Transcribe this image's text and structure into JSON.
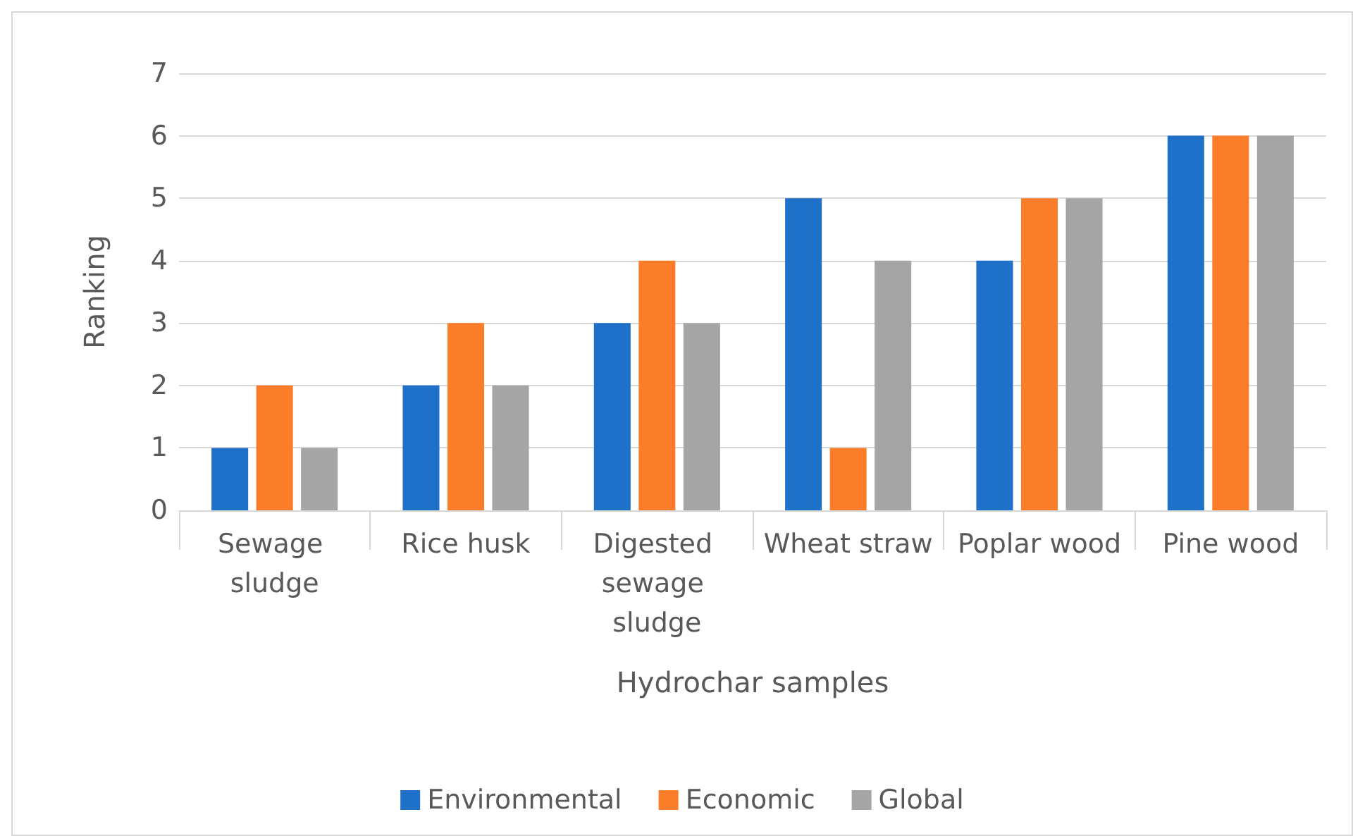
{
  "chart_data": {
    "type": "bar",
    "xlabel": "Hydrochar samples",
    "ylabel": "Ranking",
    "categories": [
      "Sewage sludge",
      "Rice husk",
      "Digested sewage sludge",
      "Wheat straw",
      "Poplar wood",
      "Pine wood"
    ],
    "series": [
      {
        "name": "Environmental",
        "color": "#1f70c8",
        "values": [
          1,
          2,
          3,
          5,
          4,
          6
        ]
      },
      {
        "name": "Economic",
        "color": "#fb7d29",
        "values": [
          2,
          3,
          4,
          1,
          5,
          6
        ]
      },
      {
        "name": "Global",
        "color": "#a5a5a5",
        "values": [
          1,
          2,
          3,
          4,
          5,
          6
        ]
      }
    ],
    "ylim": [
      0,
      7
    ],
    "yticks": [
      0,
      1,
      2,
      3,
      4,
      5,
      6,
      7
    ],
    "grid": "y",
    "legend": "bottom"
  }
}
